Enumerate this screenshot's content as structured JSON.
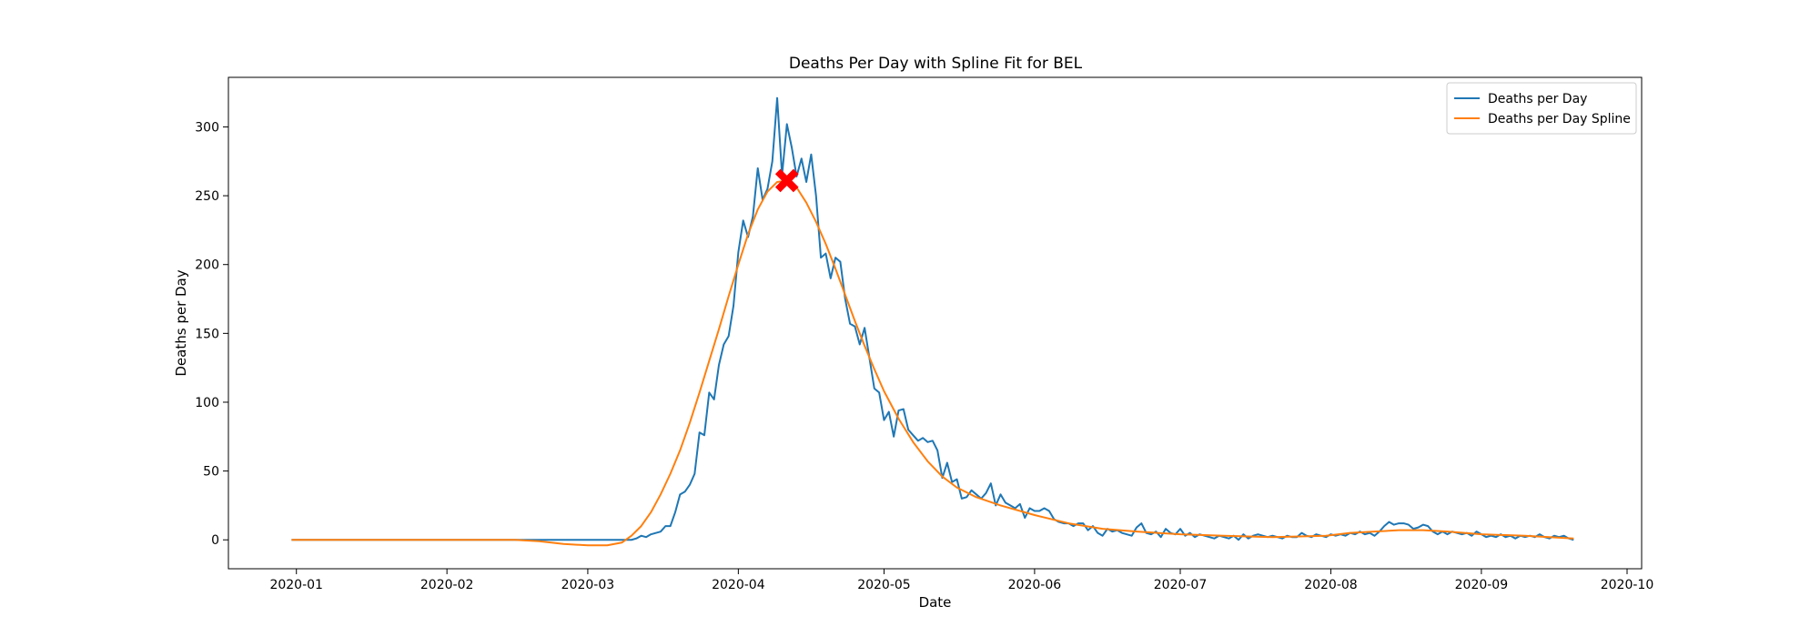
{
  "chart_data": {
    "type": "line",
    "title": "Deaths Per Day with Spline Fit for BEL",
    "xlabel": "Date",
    "ylabel": "Deaths per Day",
    "xlim": [
      "2019-12-18",
      "2020-10-04"
    ],
    "ylim": [
      -21,
      336
    ],
    "x_ticks": [
      "2020-01",
      "2020-02",
      "2020-03",
      "2020-04",
      "2020-05",
      "2020-06",
      "2020-07",
      "2020-08",
      "2020-09",
      "2020-10"
    ],
    "y_ticks": [
      0,
      50,
      100,
      150,
      200,
      250,
      300
    ],
    "legend": {
      "position": "top-right",
      "entries": [
        "Deaths per Day",
        "Deaths per Day Spline"
      ]
    },
    "series": [
      {
        "name": "Deaths per Day",
        "color": "#1f77b4",
        "points": [
          [
            "2019-12-31",
            0
          ],
          [
            "2020-02-01",
            0
          ],
          [
            "2020-03-01",
            0
          ],
          [
            "2020-03-09",
            0
          ],
          [
            "2020-03-10",
            0
          ],
          [
            "2020-03-11",
            1
          ],
          [
            "2020-03-12",
            3
          ],
          [
            "2020-03-13",
            2
          ],
          [
            "2020-03-14",
            4
          ],
          [
            "2020-03-15",
            5
          ],
          [
            "2020-03-16",
            6
          ],
          [
            "2020-03-17",
            10
          ],
          [
            "2020-03-18",
            10
          ],
          [
            "2020-03-19",
            20
          ],
          [
            "2020-03-20",
            33
          ],
          [
            "2020-03-21",
            35
          ],
          [
            "2020-03-22",
            40
          ],
          [
            "2020-03-23",
            48
          ],
          [
            "2020-03-24",
            78
          ],
          [
            "2020-03-25",
            76
          ],
          [
            "2020-03-26",
            107
          ],
          [
            "2020-03-27",
            102
          ],
          [
            "2020-03-28",
            127
          ],
          [
            "2020-03-29",
            142
          ],
          [
            "2020-03-30",
            148
          ],
          [
            "2020-03-31",
            170
          ],
          [
            "2020-04-01",
            209
          ],
          [
            "2020-04-02",
            232
          ],
          [
            "2020-04-03",
            220
          ],
          [
            "2020-04-04",
            235
          ],
          [
            "2020-04-05",
            270
          ],
          [
            "2020-04-06",
            247
          ],
          [
            "2020-04-07",
            255
          ],
          [
            "2020-04-08",
            275
          ],
          [
            "2020-04-09",
            321
          ],
          [
            "2020-04-10",
            265
          ],
          [
            "2020-04-11",
            302
          ],
          [
            "2020-04-12",
            285
          ],
          [
            "2020-04-13",
            264
          ],
          [
            "2020-04-14",
            277
          ],
          [
            "2020-04-15",
            260
          ],
          [
            "2020-04-16",
            280
          ],
          [
            "2020-04-17",
            250
          ],
          [
            "2020-04-18",
            205
          ],
          [
            "2020-04-19",
            208
          ],
          [
            "2020-04-20",
            190
          ],
          [
            "2020-04-21",
            205
          ],
          [
            "2020-04-22",
            202
          ],
          [
            "2020-04-23",
            175
          ],
          [
            "2020-04-24",
            157
          ],
          [
            "2020-04-25",
            155
          ],
          [
            "2020-04-26",
            142
          ],
          [
            "2020-04-27",
            154
          ],
          [
            "2020-04-28",
            132
          ],
          [
            "2020-04-29",
            110
          ],
          [
            "2020-04-30",
            107
          ],
          [
            "2020-05-01",
            87
          ],
          [
            "2020-05-02",
            93
          ],
          [
            "2020-05-03",
            75
          ],
          [
            "2020-05-04",
            94
          ],
          [
            "2020-05-05",
            95
          ],
          [
            "2020-05-06",
            80
          ],
          [
            "2020-05-07",
            76
          ],
          [
            "2020-05-08",
            72
          ],
          [
            "2020-05-09",
            74
          ],
          [
            "2020-05-10",
            71
          ],
          [
            "2020-05-11",
            72
          ],
          [
            "2020-05-12",
            65
          ],
          [
            "2020-05-13",
            45
          ],
          [
            "2020-05-14",
            56
          ],
          [
            "2020-05-15",
            42
          ],
          [
            "2020-05-16",
            44
          ],
          [
            "2020-05-17",
            30
          ],
          [
            "2020-05-18",
            31
          ],
          [
            "2020-05-19",
            36
          ],
          [
            "2020-05-20",
            33
          ],
          [
            "2020-05-21",
            30
          ],
          [
            "2020-05-22",
            34
          ],
          [
            "2020-05-23",
            41
          ],
          [
            "2020-05-24",
            25
          ],
          [
            "2020-05-25",
            33
          ],
          [
            "2020-05-26",
            27
          ],
          [
            "2020-05-27",
            25
          ],
          [
            "2020-05-28",
            23
          ],
          [
            "2020-05-29",
            26
          ],
          [
            "2020-05-30",
            16
          ],
          [
            "2020-05-31",
            23
          ],
          [
            "2020-06-01",
            21
          ],
          [
            "2020-06-02",
            21
          ],
          [
            "2020-06-03",
            23
          ],
          [
            "2020-06-04",
            21
          ],
          [
            "2020-06-05",
            15
          ],
          [
            "2020-06-06",
            13
          ],
          [
            "2020-06-07",
            12
          ],
          [
            "2020-06-08",
            12
          ],
          [
            "2020-06-09",
            10
          ],
          [
            "2020-06-10",
            12
          ],
          [
            "2020-06-11",
            12
          ],
          [
            "2020-06-12",
            7
          ],
          [
            "2020-06-13",
            10
          ],
          [
            "2020-06-14",
            5
          ],
          [
            "2020-06-15",
            3
          ],
          [
            "2020-06-16",
            8
          ],
          [
            "2020-06-17",
            6
          ],
          [
            "2020-06-18",
            7
          ],
          [
            "2020-06-19",
            5
          ],
          [
            "2020-06-20",
            4
          ],
          [
            "2020-06-21",
            3
          ],
          [
            "2020-06-22",
            9
          ],
          [
            "2020-06-23",
            12
          ],
          [
            "2020-06-24",
            5
          ],
          [
            "2020-06-25",
            4
          ],
          [
            "2020-06-26",
            6
          ],
          [
            "2020-06-27",
            2
          ],
          [
            "2020-06-28",
            8
          ],
          [
            "2020-06-29",
            5
          ],
          [
            "2020-06-30",
            4
          ],
          [
            "2020-07-01",
            8
          ],
          [
            "2020-07-02",
            3
          ],
          [
            "2020-07-03",
            5
          ],
          [
            "2020-07-04",
            2
          ],
          [
            "2020-07-05",
            4
          ],
          [
            "2020-07-06",
            3
          ],
          [
            "2020-07-07",
            2
          ],
          [
            "2020-07-08",
            1
          ],
          [
            "2020-07-09",
            3
          ],
          [
            "2020-07-10",
            2
          ],
          [
            "2020-07-11",
            1
          ],
          [
            "2020-07-12",
            3
          ],
          [
            "2020-07-13",
            0
          ],
          [
            "2020-07-14",
            4
          ],
          [
            "2020-07-15",
            1
          ],
          [
            "2020-07-16",
            3
          ],
          [
            "2020-07-17",
            4
          ],
          [
            "2020-07-18",
            3
          ],
          [
            "2020-07-19",
            2
          ],
          [
            "2020-07-20",
            3
          ],
          [
            "2020-07-21",
            2
          ],
          [
            "2020-07-22",
            1
          ],
          [
            "2020-07-23",
            3
          ],
          [
            "2020-07-24",
            2
          ],
          [
            "2020-07-25",
            2
          ],
          [
            "2020-07-26",
            5
          ],
          [
            "2020-07-27",
            3
          ],
          [
            "2020-07-28",
            2
          ],
          [
            "2020-07-29",
            4
          ],
          [
            "2020-07-30",
            3
          ],
          [
            "2020-07-31",
            2
          ],
          [
            "2020-08-01",
            4
          ],
          [
            "2020-08-02",
            3
          ],
          [
            "2020-08-03",
            4
          ],
          [
            "2020-08-04",
            3
          ],
          [
            "2020-08-05",
            5
          ],
          [
            "2020-08-06",
            4
          ],
          [
            "2020-08-07",
            6
          ],
          [
            "2020-08-08",
            4
          ],
          [
            "2020-08-09",
            5
          ],
          [
            "2020-08-10",
            3
          ],
          [
            "2020-08-11",
            6
          ],
          [
            "2020-08-12",
            10
          ],
          [
            "2020-08-13",
            13
          ],
          [
            "2020-08-14",
            11
          ],
          [
            "2020-08-15",
            12
          ],
          [
            "2020-08-16",
            12
          ],
          [
            "2020-08-17",
            11
          ],
          [
            "2020-08-18",
            8
          ],
          [
            "2020-08-19",
            9
          ],
          [
            "2020-08-20",
            11
          ],
          [
            "2020-08-21",
            10
          ],
          [
            "2020-08-22",
            6
          ],
          [
            "2020-08-23",
            4
          ],
          [
            "2020-08-24",
            6
          ],
          [
            "2020-08-25",
            4
          ],
          [
            "2020-08-26",
            6
          ],
          [
            "2020-08-27",
            5
          ],
          [
            "2020-08-28",
            4
          ],
          [
            "2020-08-29",
            5
          ],
          [
            "2020-08-30",
            3
          ],
          [
            "2020-08-31",
            6
          ],
          [
            "2020-09-01",
            4
          ],
          [
            "2020-09-02",
            2
          ],
          [
            "2020-09-03",
            3
          ],
          [
            "2020-09-04",
            2
          ],
          [
            "2020-09-05",
            4
          ],
          [
            "2020-09-06",
            2
          ],
          [
            "2020-09-07",
            3
          ],
          [
            "2020-09-08",
            1
          ],
          [
            "2020-09-09",
            3
          ],
          [
            "2020-09-10",
            2
          ],
          [
            "2020-09-11",
            3
          ],
          [
            "2020-09-12",
            2
          ],
          [
            "2020-09-13",
            4
          ],
          [
            "2020-09-14",
            2
          ],
          [
            "2020-09-15",
            1
          ],
          [
            "2020-09-16",
            3
          ],
          [
            "2020-09-17",
            2
          ],
          [
            "2020-09-18",
            3
          ],
          [
            "2020-09-19",
            1
          ],
          [
            "2020-09-20",
            0
          ]
        ]
      },
      {
        "name": "Deaths per Day Spline",
        "color": "#ff7f0e",
        "points": [
          [
            "2019-12-31",
            0
          ],
          [
            "2020-01-15",
            0
          ],
          [
            "2020-02-01",
            0
          ],
          [
            "2020-02-15",
            0
          ],
          [
            "2020-02-20",
            -1
          ],
          [
            "2020-02-25",
            -3
          ],
          [
            "2020-03-01",
            -4
          ],
          [
            "2020-03-05",
            -4
          ],
          [
            "2020-03-08",
            -2
          ],
          [
            "2020-03-10",
            3
          ],
          [
            "2020-03-12",
            10
          ],
          [
            "2020-03-14",
            20
          ],
          [
            "2020-03-16",
            33
          ],
          [
            "2020-03-18",
            48
          ],
          [
            "2020-03-20",
            65
          ],
          [
            "2020-03-22",
            85
          ],
          [
            "2020-03-24",
            107
          ],
          [
            "2020-03-26",
            130
          ],
          [
            "2020-03-28",
            153
          ],
          [
            "2020-03-30",
            177
          ],
          [
            "2020-04-01",
            200
          ],
          [
            "2020-04-03",
            222
          ],
          [
            "2020-04-05",
            240
          ],
          [
            "2020-04-07",
            253
          ],
          [
            "2020-04-09",
            260
          ],
          [
            "2020-04-11",
            261
          ],
          [
            "2020-04-13",
            256
          ],
          [
            "2020-04-15",
            245
          ],
          [
            "2020-04-17",
            231
          ],
          [
            "2020-04-19",
            215
          ],
          [
            "2020-04-21",
            197
          ],
          [
            "2020-04-23",
            178
          ],
          [
            "2020-04-25",
            159
          ],
          [
            "2020-04-27",
            141
          ],
          [
            "2020-04-29",
            124
          ],
          [
            "2020-05-01",
            108
          ],
          [
            "2020-05-04",
            88
          ],
          [
            "2020-05-07",
            71
          ],
          [
            "2020-05-10",
            57
          ],
          [
            "2020-05-13",
            46
          ],
          [
            "2020-05-16",
            38
          ],
          [
            "2020-05-20",
            31
          ],
          [
            "2020-05-25",
            25
          ],
          [
            "2020-06-01",
            18
          ],
          [
            "2020-06-08",
            12
          ],
          [
            "2020-06-15",
            8
          ],
          [
            "2020-06-22",
            6
          ],
          [
            "2020-07-01",
            4
          ],
          [
            "2020-07-10",
            3
          ],
          [
            "2020-07-20",
            2
          ],
          [
            "2020-07-31",
            3
          ],
          [
            "2020-08-05",
            5
          ],
          [
            "2020-08-10",
            6
          ],
          [
            "2020-08-15",
            7
          ],
          [
            "2020-08-20",
            7
          ],
          [
            "2020-08-25",
            6
          ],
          [
            "2020-09-01",
            4
          ],
          [
            "2020-09-10",
            3
          ],
          [
            "2020-09-20",
            1
          ]
        ]
      }
    ],
    "marker": {
      "x": "2020-04-11",
      "y": 261,
      "symbol": "X",
      "color": "#ff0000"
    }
  }
}
